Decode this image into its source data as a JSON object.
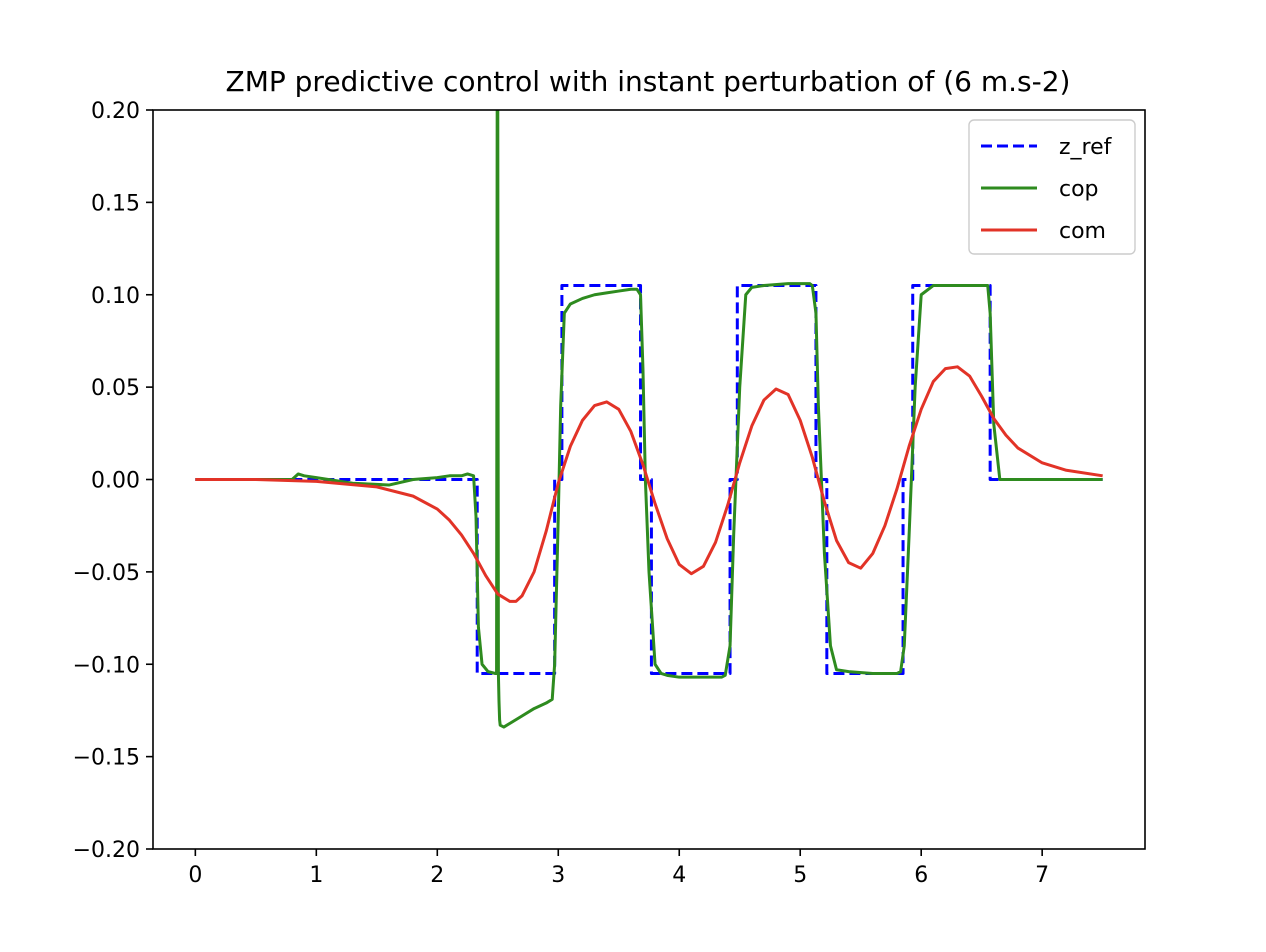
{
  "chart_data": {
    "type": "line",
    "title": "ZMP predictive control with instant perturbation of (6 m.s-2)",
    "xlabel": "",
    "ylabel": "",
    "xlim": [
      -0.35,
      7.85
    ],
    "ylim": [
      -0.2,
      0.2
    ],
    "x_ticks": [
      0,
      1,
      2,
      3,
      4,
      5,
      6,
      7
    ],
    "x_tick_labels": [
      "0",
      "1",
      "2",
      "3",
      "4",
      "5",
      "6",
      "7"
    ],
    "y_ticks": [
      0.2,
      0.15,
      0.1,
      0.05,
      0.0,
      -0.05,
      -0.1,
      -0.15,
      -0.2
    ],
    "y_tick_labels": [
      "0.20",
      "0.15",
      "0.10",
      "0.05",
      "0.00",
      "−0.05",
      "−0.10",
      "−0.15",
      "−0.20"
    ],
    "grid": false,
    "legend_position": "top-right",
    "series": [
      {
        "name": "z_ref",
        "color": "#0000ff",
        "style": "dashed",
        "x": [
          0,
          2.33,
          2.33,
          2.97,
          2.97,
          3.03,
          3.03,
          3.68,
          3.68,
          3.77,
          3.77,
          4.42,
          4.42,
          4.48,
          4.48,
          5.13,
          5.13,
          5.22,
          5.22,
          5.85,
          5.85,
          5.93,
          5.93,
          6.57,
          6.57,
          7.5
        ],
        "values": [
          0,
          0,
          -0.105,
          -0.105,
          0,
          0,
          0.105,
          0.105,
          0,
          0,
          -0.105,
          -0.105,
          0,
          0,
          0.105,
          0.105,
          0,
          0,
          -0.105,
          -0.105,
          0,
          0,
          0.105,
          0.105,
          0,
          0
        ]
      },
      {
        "name": "cop",
        "color": "#2e8b1f",
        "style": "solid",
        "x": [
          0,
          0.8,
          0.85,
          0.9,
          1.0,
          1.3,
          1.6,
          1.8,
          2.0,
          2.1,
          2.2,
          2.25,
          2.3,
          2.32,
          2.34,
          2.37,
          2.42,
          2.48,
          2.49,
          2.495,
          2.5,
          2.505,
          2.51,
          2.515,
          2.52,
          2.55,
          2.6,
          2.7,
          2.8,
          2.9,
          2.95,
          2.97,
          3.0,
          3.02,
          3.05,
          3.1,
          3.2,
          3.3,
          3.4,
          3.5,
          3.6,
          3.65,
          3.68,
          3.7,
          3.72,
          3.75,
          3.8,
          3.85,
          3.9,
          4.0,
          4.2,
          4.35,
          4.38,
          4.42,
          4.45,
          4.5,
          4.55,
          4.6,
          4.7,
          4.9,
          5.08,
          5.1,
          5.13,
          5.15,
          5.2,
          5.25,
          5.3,
          5.4,
          5.6,
          5.8,
          5.83,
          5.86,
          5.9,
          5.95,
          6.0,
          6.1,
          6.3,
          6.5,
          6.55,
          6.57,
          6.6,
          6.65,
          7.0,
          7.5
        ],
        "values": [
          0,
          0,
          0.003,
          0.002,
          0.001,
          -0.002,
          -0.003,
          0.0,
          0.001,
          0.002,
          0.002,
          0.003,
          0.002,
          -0.02,
          -0.08,
          -0.1,
          -0.104,
          -0.105,
          -0.105,
          0.2,
          0.2,
          -0.105,
          -0.12,
          -0.13,
          -0.133,
          -0.134,
          -0.132,
          -0.128,
          -0.124,
          -0.121,
          -0.119,
          -0.1,
          -0.02,
          0.04,
          0.09,
          0.095,
          0.098,
          0.1,
          0.101,
          0.102,
          0.103,
          0.103,
          0.1,
          0.06,
          0.0,
          -0.05,
          -0.1,
          -0.105,
          -0.106,
          -0.107,
          -0.107,
          -0.107,
          -0.106,
          -0.09,
          -0.03,
          0.05,
          0.1,
          0.104,
          0.105,
          0.106,
          0.106,
          0.105,
          0.09,
          0.04,
          -0.04,
          -0.09,
          -0.103,
          -0.104,
          -0.105,
          -0.105,
          -0.104,
          -0.09,
          -0.03,
          0.05,
          0.1,
          0.105,
          0.105,
          0.105,
          0.105,
          0.09,
          0.03,
          0.0,
          0.0,
          0.0
        ]
      },
      {
        "name": "com",
        "color": "#e23327",
        "style": "solid",
        "x": [
          0,
          0.5,
          1.0,
          1.5,
          1.8,
          2.0,
          2.1,
          2.2,
          2.3,
          2.4,
          2.5,
          2.6,
          2.65,
          2.7,
          2.8,
          2.9,
          3.0,
          3.1,
          3.2,
          3.3,
          3.4,
          3.5,
          3.6,
          3.7,
          3.8,
          3.9,
          4.0,
          4.1,
          4.2,
          4.3,
          4.4,
          4.5,
          4.6,
          4.7,
          4.8,
          4.9,
          5.0,
          5.1,
          5.2,
          5.3,
          5.4,
          5.5,
          5.6,
          5.7,
          5.8,
          5.9,
          6.0,
          6.1,
          6.2,
          6.3,
          6.4,
          6.5,
          6.6,
          6.7,
          6.8,
          7.0,
          7.2,
          7.5
        ],
        "values": [
          0,
          0,
          -0.001,
          -0.004,
          -0.009,
          -0.016,
          -0.022,
          -0.03,
          -0.04,
          -0.052,
          -0.062,
          -0.066,
          -0.066,
          -0.063,
          -0.05,
          -0.028,
          -0.002,
          0.018,
          0.032,
          0.04,
          0.042,
          0.038,
          0.026,
          0.008,
          -0.013,
          -0.032,
          -0.046,
          -0.051,
          -0.047,
          -0.034,
          -0.014,
          0.009,
          0.029,
          0.043,
          0.049,
          0.046,
          0.032,
          0.012,
          -0.012,
          -0.033,
          -0.045,
          -0.048,
          -0.04,
          -0.025,
          -0.005,
          0.018,
          0.038,
          0.053,
          0.06,
          0.061,
          0.056,
          0.045,
          0.033,
          0.024,
          0.017,
          0.009,
          0.005,
          0.002
        ]
      }
    ]
  }
}
